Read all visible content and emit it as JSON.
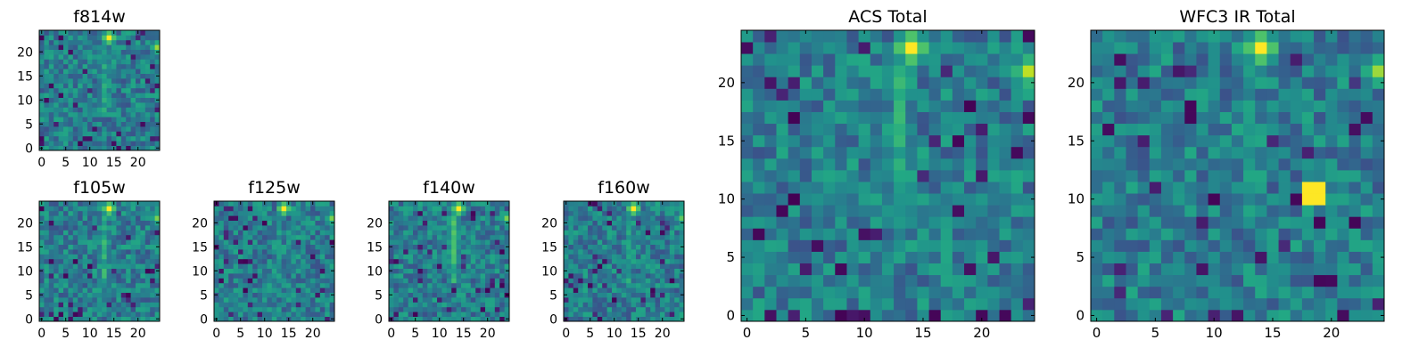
{
  "chart_data": [
    {
      "type": "heatmap",
      "title": "f814w",
      "xlim": [
        -0.5,
        24.5
      ],
      "ylim": [
        -0.5,
        24.5
      ],
      "xticks": [
        0,
        5,
        10,
        15,
        20
      ],
      "yticks": [
        0,
        5,
        10,
        15,
        20
      ],
      "colormap": "viridis",
      "grid_size": [
        25,
        25
      ],
      "bright_features": [
        {
          "description": "compact peak",
          "x": 14,
          "y": 23,
          "level": 1.0
        },
        {
          "description": "diffuse vertical band",
          "x": 13,
          "y_range": [
            8,
            21
          ],
          "level": 0.65
        },
        {
          "description": "edge peak",
          "x": 24,
          "y": 21,
          "level": 0.85
        }
      ]
    },
    {
      "type": "heatmap",
      "title": "f105w",
      "xlim": [
        -0.5,
        24.5
      ],
      "ylim": [
        -0.5,
        24.5
      ],
      "xticks": [
        0,
        5,
        10,
        15,
        20
      ],
      "yticks": [
        0,
        5,
        10,
        15,
        20
      ],
      "colormap": "viridis",
      "grid_size": [
        25,
        25
      ],
      "bright_features": [
        {
          "description": "compact peak",
          "x": 14,
          "y": 23,
          "level": 1.0
        },
        {
          "description": "diffuse vertical band",
          "x": 13,
          "y_range": [
            8,
            21
          ],
          "level": 0.7
        },
        {
          "description": "edge peak",
          "x": 24,
          "y": 21,
          "level": 0.8
        }
      ]
    },
    {
      "type": "heatmap",
      "title": "f125w",
      "xlim": [
        -0.5,
        24.5
      ],
      "ylim": [
        -0.5,
        24.5
      ],
      "xticks": [
        0,
        5,
        10,
        15,
        20
      ],
      "yticks": [
        0,
        5,
        10,
        15,
        20
      ],
      "colormap": "viridis",
      "grid_size": [
        25,
        25
      ],
      "bright_features": [
        {
          "description": "compact peak",
          "x": 14,
          "y": 23,
          "level": 1.0
        },
        {
          "description": "diffuse vertical band",
          "x": 13,
          "y_range": [
            8,
            21
          ],
          "level": 0.6
        },
        {
          "description": "edge peak",
          "x": 24,
          "y": 21,
          "level": 0.8
        }
      ]
    },
    {
      "type": "heatmap",
      "title": "f140w",
      "xlim": [
        -0.5,
        24.5
      ],
      "ylim": [
        -0.5,
        24.5
      ],
      "xticks": [
        0,
        5,
        10,
        15,
        20
      ],
      "yticks": [
        0,
        5,
        10,
        15,
        20
      ],
      "colormap": "viridis",
      "grid_size": [
        25,
        25
      ],
      "bright_features": [
        {
          "description": "compact peak",
          "x": 14,
          "y": 23,
          "level": 1.0
        },
        {
          "description": "diffuse vertical band",
          "x": 13,
          "y_range": [
            8,
            21
          ],
          "level": 0.75
        },
        {
          "description": "edge peak",
          "x": 24,
          "y": 21,
          "level": 0.8
        }
      ]
    },
    {
      "type": "heatmap",
      "title": "f160w",
      "xlim": [
        -0.5,
        24.5
      ],
      "ylim": [
        -0.5,
        24.5
      ],
      "xticks": [
        0,
        5,
        10,
        15,
        20
      ],
      "yticks": [
        0,
        5,
        10,
        15,
        20
      ],
      "colormap": "viridis",
      "grid_size": [
        25,
        25
      ],
      "bright_features": [
        {
          "description": "compact peak",
          "x": 14,
          "y": 23,
          "level": 1.0
        },
        {
          "description": "diffuse vertical band",
          "x": 13,
          "y_range": [
            8,
            21
          ],
          "level": 0.65
        },
        {
          "description": "edge peak",
          "x": 24,
          "y": 21,
          "level": 0.75
        }
      ]
    },
    {
      "type": "heatmap",
      "title": "ACS Total",
      "xlim": [
        -0.5,
        24.5
      ],
      "ylim": [
        -0.5,
        24.5
      ],
      "xticks": [
        0,
        5,
        10,
        15,
        20
      ],
      "yticks": [
        0,
        5,
        10,
        15,
        20
      ],
      "colormap": "viridis",
      "grid_size": [
        25,
        25
      ],
      "bright_features": [
        {
          "description": "compact peak",
          "x": 14,
          "y": 23,
          "level": 1.0
        },
        {
          "description": "diffuse vertical band",
          "x": 13,
          "y_range": [
            8,
            21
          ],
          "level": 0.7
        },
        {
          "description": "edge peak",
          "x": 24,
          "y": 21,
          "level": 0.9
        }
      ]
    },
    {
      "type": "heatmap",
      "title": "WFC3 IR Total",
      "xlim": [
        -0.5,
        24.5
      ],
      "ylim": [
        -0.5,
        24.5
      ],
      "xticks": [
        0,
        5,
        10,
        15,
        20
      ],
      "yticks": [
        0,
        5,
        10,
        15,
        20
      ],
      "colormap": "viridis",
      "grid_size": [
        25,
        25
      ],
      "bright_features": [
        {
          "description": "compact peak",
          "x": 14,
          "y": 23,
          "level": 1.0
        },
        {
          "description": "diffuse vertical band",
          "x": 13,
          "y_range": [
            8,
            21
          ],
          "level": 0.6
        },
        {
          "description": "edge peak",
          "x": 24,
          "y": 21,
          "level": 0.85
        },
        {
          "description": "isolated bright pixel pair",
          "x_range": [
            18,
            19
          ],
          "y_range": [
            10,
            11
          ],
          "level": 1.0
        }
      ]
    }
  ]
}
